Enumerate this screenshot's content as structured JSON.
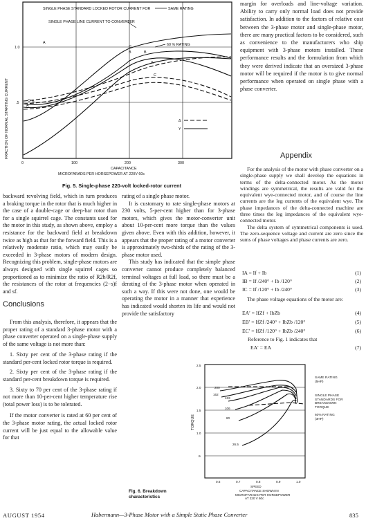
{
  "fig5": {
    "title_line1": "SINGLE PHASE STANDARD LOCKED ROTOR CURRENT FOR",
    "title_arrow": "SAME RATING",
    "title_line2": "SINGLE PHASE LINE CURRENT TO CONVERTER",
    "rating_label": "60 % RATING",
    "ylabel": "FRACTION OF NORMAL STARTING CURRENT",
    "xlabel1": "CAPACITANCE",
    "xlabel2": "MICROFARADS PER HORSEPOWER AT 220V 60c",
    "caption": "Fig. 5. Single-phase 220-volt locked-rotor current",
    "legend": [
      "Δ",
      "Y"
    ],
    "curve_letters": [
      "A",
      "B",
      "C",
      "A",
      "B",
      "C",
      "A",
      "B",
      "C"
    ],
    "chart_data": {
      "type": "line",
      "x_ticks": [
        "0",
        "100",
        "200",
        "300"
      ],
      "y_ticks": [
        "1.0",
        ".5"
      ],
      "xlim": [
        0,
        390
      ],
      "ylim": [
        0,
        1.3
      ]
    }
  },
  "fig6": {
    "ylabel": "TORQUE",
    "xlabel1": "SPEED",
    "xlabel2": "CAPACITANCE SHOWN IN",
    "xlabel3": "MICROFARADS PER HORSEPOWER",
    "xlabel4": "AT 220 V 60c",
    "caption_line1": "Fig. 6. Breakdown",
    "caption_line2": "characteristics",
    "same_rating": "SAME RATING (5HP)",
    "single_phase": "SINGLE PHASE STANDARDS FOR BREAKDOWN TORQUE",
    "sixty": "60% RATING (3HP)",
    "curve_labels": [
      "200",
      "162",
      "133",
      "106",
      "80",
      "26.5"
    ],
    "chart_data": {
      "type": "line",
      "x_ticks": [
        "0.6",
        "0.7",
        "0.8",
        "0.9",
        "1.0"
      ],
      "y_ticks": [
        "2.5",
        "2.0",
        "1.5",
        "1.0",
        ".5"
      ],
      "xlim": [
        0.5,
        1.0
      ],
      "ylim": [
        0,
        2.5
      ]
    }
  },
  "col_right_top": [
    "margin for overloads and line-voltage variation. Ability to carry only normal load does not provide satisfaction. In addition to the factors of relative cost between the 3-phase motor and single-phase motor, there are many practical factors to be considered, such as convenience to the manufacturers who ship equipment with 3-phase motors installed. These performance results and the formulation from which they were derived indicate that an oversized 3-phase motor will be required if the motor is to give normal performance when operated on single phase with a phase converter."
  ],
  "appendix": {
    "heading": "Appendix",
    "para1": "For the analysis of the motor with phase converter on a single-phase supply we shall develop the equations in terms of the delta-connected motor. As the motor windings are symmetrical, the results are valid for the equivalent wye-connected motor, and of course the line currents are the leg currents of the equivalent wye. The phase impedances of the delta-connected machine are three times the leg impedances of the equivalent wye-connected motor.",
    "para2": "The delta system of symmetrical components is used. The zero-sequence voltage and current are zero since the sums of phase voltages and phase currents are zero.",
    "eq1": "IA = If + Ib",
    "eq1n": "(1)",
    "eq2": "IB = If /240° + Ib /120°",
    "eq2n": "(2)",
    "eq3": "IC = If /120° + Ib /240°",
    "eq3n": "(3)",
    "para3": "The phase voltage equations of the motor are:",
    "eq4": "EA′ = IfZf + IbZb",
    "eq4n": "(4)",
    "eq5": "EB′ = IfZf /240° + IbZb /120°",
    "eq5n": "(5)",
    "eq6": "EC′ = IfZf /120° + IbZb /240°",
    "eq6n": "(6)",
    "para4": "Reference to Fig. 1 indicates that",
    "eq7": "EA′ = EA",
    "eq7n": "(7)"
  },
  "col_left": {
    "para1": "backward revolving field, which in turn produces a braking torque in the rotor that is much higher in the case of a double-cage or deep-bar rotor than for a single squirrel cage. The constants used for the motor in this study, as shown above, employ a resistance for the backward field at breakdown twice as high as that for the forward field. This is a relatively moderate ratio, which may easily be exceeded in 3-phase motors of modern design. Recognizing this problem, single-phase motors are always designed with single squirrel cages so proportioned as to minimize the ratio of R2b/R2f, the resistances of the rotor at frequencies (2−s)f and sf.",
    "heading": "Conclusions",
    "para2": "From this analysis, therefore, it appears that the proper rating of a standard 3-phase motor with a phase converter operated on a single-phase supply of the same voltage is not more than:",
    "item1": "1. Sixty per cent of the 3-phase rating if the standard per-cent locked rotor torque is required.",
    "item2": "2. Sixty per cent of the 3-phase rating if the standard per-cent breakdown torque is required.",
    "item3": "3. Sixty to 70 per cent of the 3-phase rating if not more than 10-per-cent higher temperature rise (total power loss) is to be tolerated.",
    "para3": "If the motor converter is rated at 60 per cent of the 3-phase motor rating, the actual locked rotor current will be just equal to the allowable value for that"
  },
  "col_mid": {
    "para1": "rating of a single phase motor.",
    "para2": "It is customary to rate single-phase motors at 230 volts, 5-per-cent higher than for 3-phase motors, which gives the motor-converter unit about 10-per-cent more torque than the values given above. Even with this addition, however, it appears that the proper rating of a motor converter is approximately two-thirds of the rating of the 3-phase motor used.",
    "para3": "This study has indicated that the simple phase converter cannot produce completely balanced terminal voltages at full load, so there must be a derating of the 3-phase motor when operated in such a way. If this were not done, one would be operating the motor in a manner that experience has indicated would shorten its life and would not provide the satisfactory"
  },
  "footer": {
    "left": "AUGUST 1954",
    "center": "Habermann—3-Phase Motor with a Simple Static Phase Converter",
    "right": "835"
  }
}
